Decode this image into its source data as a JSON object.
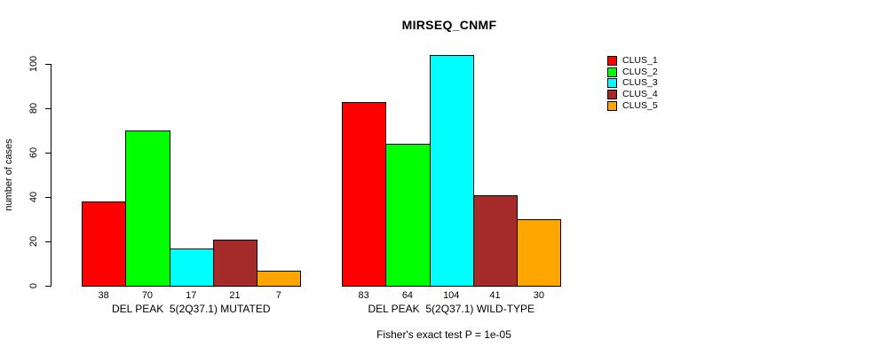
{
  "title": "MIRSEQ_CNMF",
  "footer": "Fisher's exact test P = 1e-05",
  "axis_color": "#000000",
  "background_color": "#ffffff",
  "legend": {
    "position": "top-right",
    "entries": [
      {
        "label": "CLUS_1",
        "color": "#FF0000"
      },
      {
        "label": "CLUS_2",
        "color": "#00FF00"
      },
      {
        "label": "CLUS_3",
        "color": "#00FFFF"
      },
      {
        "label": "CLUS_4",
        "color": "#A52A2A"
      },
      {
        "label": "CLUS_5",
        "color": "#FFA500"
      }
    ]
  },
  "chart_data": {
    "type": "bar",
    "title": "MIRSEQ_CNMF",
    "xlabel": "",
    "ylabel": "number of cases",
    "yticks": [
      0,
      20,
      40,
      60,
      80,
      100
    ],
    "ylim": [
      0,
      104
    ],
    "grid": false,
    "legend_position": "top-right",
    "series_names": [
      "CLUS_1",
      "CLUS_2",
      "CLUS_3",
      "CLUS_4",
      "CLUS_5"
    ],
    "colors": [
      "#FF0000",
      "#00FF00",
      "#00FFFF",
      "#A52A2A",
      "#FFA500"
    ],
    "groups": [
      {
        "label": "DEL PEAK  5(2Q37.1) MUTATED",
        "values": [
          38,
          70,
          17,
          21,
          7
        ]
      },
      {
        "label": "DEL PEAK  5(2Q37.1) WILD-TYPE",
        "values": [
          83,
          64,
          104,
          41,
          30
        ]
      }
    ],
    "bar_value_labels_shown": true,
    "annotation": "Fisher's exact test P = 1e-05"
  }
}
